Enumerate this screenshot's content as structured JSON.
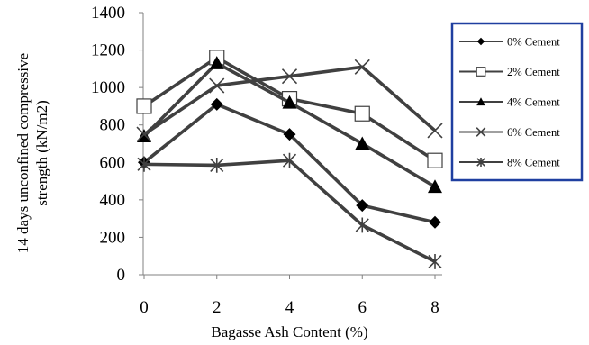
{
  "chart_data": {
    "type": "line",
    "title": "",
    "xlabel": "Bagasse Ash Content (%)",
    "ylabel": "14 days unconfined compressive strength (kN/m2)",
    "x": [
      0,
      2,
      4,
      6,
      8
    ],
    "x_ticks": [
      "0",
      "2",
      "4",
      "6",
      "8"
    ],
    "xlim": [
      0,
      8
    ],
    "ylim": [
      0,
      1400
    ],
    "y_ticks": [
      "0",
      "200",
      "400",
      "600",
      "800",
      "1000",
      "1200",
      "1400"
    ],
    "y_tick_values": [
      0,
      200,
      400,
      600,
      800,
      1000,
      1200,
      1400
    ],
    "grid": false,
    "legend_position": "right",
    "line_color": "#404040",
    "legend_border_color": "#1f3fa0",
    "series": [
      {
        "name": "0% Cement",
        "marker": "diamond",
        "values": [
          600,
          910,
          750,
          370,
          280
        ]
      },
      {
        "name": "2% Cement",
        "marker": "square-open",
        "values": [
          900,
          1160,
          940,
          860,
          610
        ]
      },
      {
        "name": "4% Cement",
        "marker": "triangle",
        "values": [
          740,
          1130,
          920,
          700,
          470
        ]
      },
      {
        "name": "6% Cement",
        "marker": "x",
        "values": [
          750,
          1010,
          1060,
          1110,
          770
        ]
      },
      {
        "name": "8% Cement",
        "marker": "star",
        "values": [
          590,
          585,
          610,
          265,
          70
        ]
      }
    ]
  }
}
